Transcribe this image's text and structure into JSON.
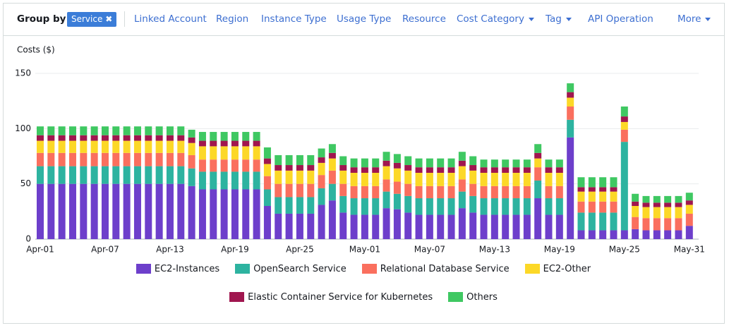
{
  "toolbar": {
    "group_by_label": "Group by:",
    "selected": "Service",
    "options": [
      {
        "label": "Linked Account",
        "dropdown": false
      },
      {
        "label": "Region",
        "dropdown": false
      },
      {
        "label": "Instance Type",
        "dropdown": false
      },
      {
        "label": "Usage Type",
        "dropdown": false
      },
      {
        "label": "Resource",
        "dropdown": false
      },
      {
        "label": "Cost Category",
        "dropdown": true
      },
      {
        "label": "Tag",
        "dropdown": true
      },
      {
        "label": "API Operation",
        "dropdown": false
      },
      {
        "label": "More",
        "dropdown": true
      }
    ]
  },
  "chart_data": {
    "type": "bar",
    "stacked": true,
    "ylabel": "Costs ($)",
    "categories": [
      "Apr-01",
      null,
      null,
      null,
      null,
      null,
      "Apr-07",
      null,
      null,
      null,
      null,
      null,
      "Apr-13",
      null,
      null,
      null,
      null,
      null,
      "Apr-19",
      null,
      null,
      null,
      null,
      null,
      "Apr-25",
      null,
      null,
      null,
      null,
      null,
      "May-01",
      null,
      null,
      null,
      null,
      null,
      "May-07",
      null,
      null,
      null,
      null,
      null,
      "May-13",
      null,
      null,
      null,
      null,
      null,
      "May-19",
      null,
      null,
      null,
      null,
      null,
      "May-25",
      null,
      null,
      null,
      null,
      null,
      "May-31"
    ],
    "ylim": [
      0,
      150
    ],
    "yticks": [
      0,
      50,
      100,
      150
    ],
    "grid": true,
    "series": [
      {
        "name": "EC2-Instances",
        "color": "#6d3fcb",
        "values": [
          50,
          50,
          50,
          50,
          50,
          50,
          50,
          50,
          50,
          50,
          50,
          50,
          50,
          50,
          48,
          45,
          45,
          45,
          45,
          45,
          45,
          30,
          23,
          23,
          23,
          23,
          31,
          35,
          24,
          22,
          22,
          22,
          28,
          27,
          24,
          22,
          22,
          22,
          22,
          28,
          24,
          22,
          22,
          22,
          22,
          22,
          37,
          22,
          22,
          92,
          8,
          8,
          8,
          8,
          8,
          9,
          8,
          8,
          8,
          8,
          12
        ]
      },
      {
        "name": "OpenSearch Service",
        "color": "#2db3a0",
        "values": [
          16,
          16,
          16,
          16,
          16,
          16,
          16,
          16,
          16,
          16,
          16,
          16,
          16,
          16,
          16,
          16,
          16,
          16,
          16,
          16,
          16,
          15,
          15,
          15,
          15,
          15,
          15,
          15,
          15,
          15,
          15,
          15,
          15,
          14,
          15,
          15,
          15,
          15,
          15,
          15,
          15,
          15,
          15,
          15,
          15,
          15,
          16,
          15,
          15,
          16,
          16,
          16,
          16,
          16,
          80,
          0,
          0,
          0,
          0,
          0,
          0
        ]
      },
      {
        "name": "Relational Database Service",
        "color": "#fa6f5e",
        "values": [
          12,
          12,
          12,
          12,
          12,
          12,
          12,
          12,
          12,
          12,
          12,
          12,
          12,
          12,
          12,
          11,
          11,
          11,
          11,
          11,
          11,
          12,
          12,
          12,
          12,
          12,
          12,
          12,
          11,
          11,
          11,
          11,
          11,
          11,
          11,
          11,
          11,
          11,
          11,
          11,
          11,
          11,
          11,
          11,
          11,
          11,
          12,
          11,
          11,
          12,
          10,
          10,
          10,
          10,
          11,
          11,
          11,
          11,
          11,
          11,
          11
        ]
      },
      {
        "name": "EC2-Other",
        "color": "#fcd827",
        "values": [
          11,
          11,
          11,
          11,
          11,
          11,
          11,
          11,
          11,
          11,
          11,
          11,
          11,
          11,
          11,
          12,
          12,
          12,
          12,
          12,
          12,
          11,
          12,
          12,
          12,
          12,
          11,
          11,
          12,
          12,
          12,
          12,
          12,
          12,
          12,
          12,
          12,
          12,
          12,
          12,
          12,
          12,
          12,
          12,
          12,
          12,
          8,
          12,
          12,
          8,
          9,
          9,
          9,
          9,
          7,
          10,
          10,
          10,
          10,
          10,
          8
        ]
      },
      {
        "name": "Elastic Container Service for Kubernetes",
        "color": "#a0164f",
        "values": [
          5,
          5,
          5,
          5,
          5,
          5,
          5,
          5,
          5,
          5,
          5,
          5,
          5,
          5,
          5,
          5,
          5,
          5,
          5,
          5,
          5,
          5,
          5,
          5,
          5,
          5,
          5,
          5,
          5,
          5,
          5,
          5,
          5,
          5,
          5,
          5,
          5,
          5,
          5,
          5,
          5,
          5,
          5,
          5,
          5,
          5,
          5,
          5,
          5,
          5,
          4,
          4,
          4,
          4,
          5,
          4,
          4,
          4,
          4,
          4,
          4
        ]
      },
      {
        "name": "Others",
        "color": "#3fc862",
        "values": [
          8,
          8,
          8,
          8,
          8,
          8,
          8,
          8,
          8,
          8,
          8,
          8,
          8,
          8,
          7,
          8,
          8,
          8,
          8,
          8,
          8,
          10,
          9,
          9,
          9,
          9,
          8,
          8,
          8,
          8,
          8,
          8,
          8,
          8,
          8,
          8,
          8,
          8,
          8,
          8,
          8,
          7,
          7,
          7,
          7,
          7,
          8,
          7,
          7,
          8,
          9,
          9,
          9,
          9,
          9,
          7,
          6,
          6,
          6,
          6,
          7
        ]
      }
    ]
  }
}
